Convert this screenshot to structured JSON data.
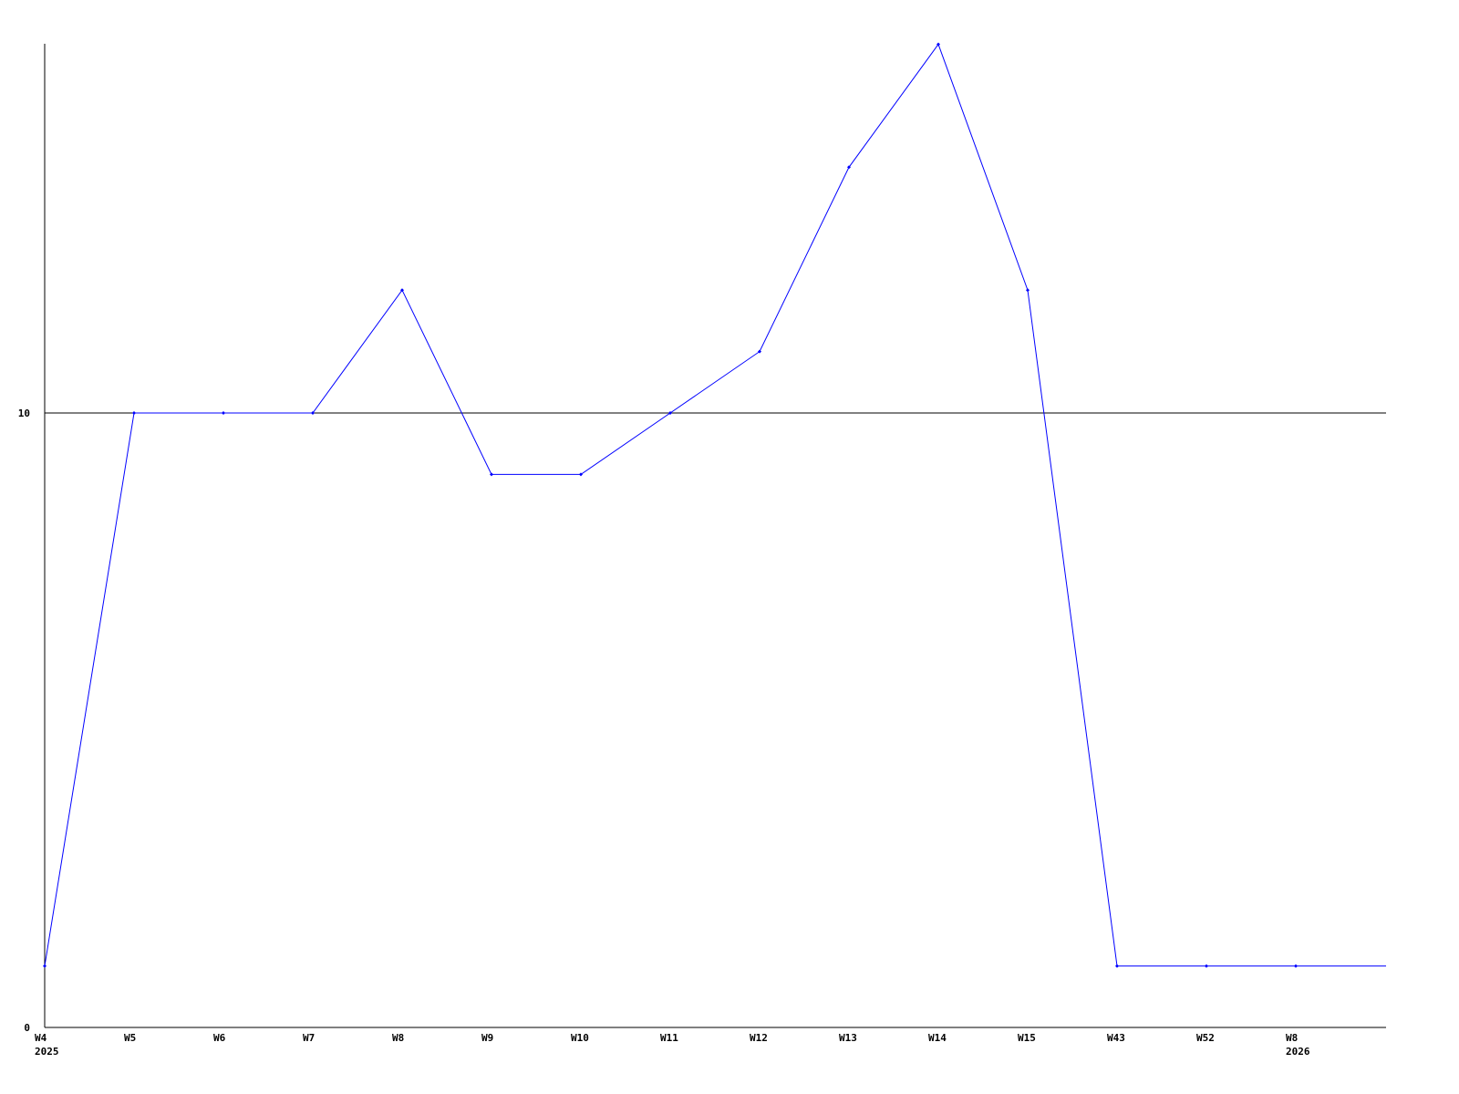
{
  "chart_data": {
    "type": "line",
    "title": "",
    "xlabel": "",
    "ylabel": "",
    "ylim": [
      0,
      16
    ],
    "y_ticks": [
      "0",
      "10"
    ],
    "grid": "horizontal reference line at 10",
    "legend": "none",
    "line_color": "#0000ff",
    "x": [
      "W4",
      "W5",
      "W6",
      "W7",
      "W8",
      "W9",
      "W10",
      "W11",
      "W12",
      "W13",
      "W14",
      "W15",
      "W43",
      "W52",
      "W8"
    ],
    "x_sublabels": [
      "2025",
      "",
      "",
      "",
      "",
      "",
      "",
      "",
      "",
      "",
      "",
      "",
      "",
      "",
      "2026"
    ],
    "series": [
      {
        "values": [
          1,
          10,
          10,
          10,
          12,
          9,
          9,
          10,
          11,
          14,
          16,
          12,
          1,
          1,
          1
        ]
      }
    ]
  }
}
